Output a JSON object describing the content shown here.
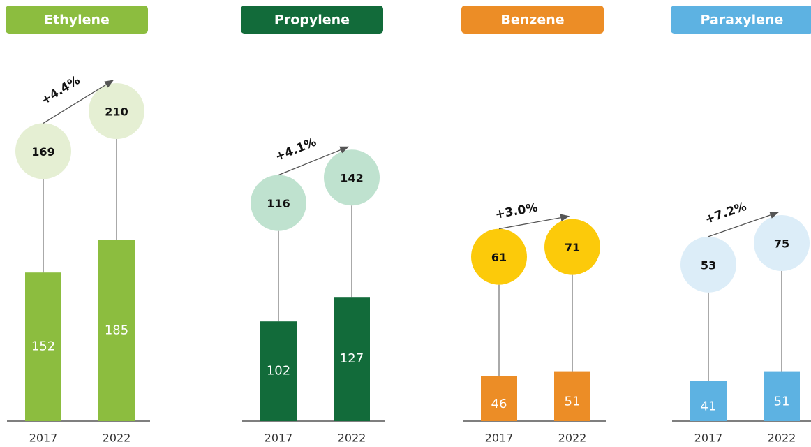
{
  "chart_data": [
    {
      "type": "bar",
      "title": "Ethylene",
      "categories": [
        "2017",
        "2022"
      ],
      "values": [
        152,
        185
      ],
      "color": "#8cbd3f",
      "circle_values": [
        169,
        210
      ],
      "circle_color": "#e5efd3",
      "annotation": "+4.4%"
    },
    {
      "type": "bar",
      "title": "Propylene",
      "categories": [
        "2017",
        "2022"
      ],
      "values": [
        102,
        127
      ],
      "color": "#126b3a",
      "circle_values": [
        116,
        142
      ],
      "circle_color": "#bfe2cf",
      "annotation": "+4.1%"
    },
    {
      "type": "bar",
      "title": "Benzene",
      "categories": [
        "2017",
        "2022"
      ],
      "values": [
        46,
        51
      ],
      "color": "#ec8d26",
      "circle_values": [
        61,
        71
      ],
      "circle_color": "#fcca0a",
      "annotation": "+3.0%"
    },
    {
      "type": "bar",
      "title": "Paraxylene",
      "categories": [
        "2017",
        "2022"
      ],
      "values": [
        41,
        51
      ],
      "color": "#5db2e2",
      "circle_values": [
        53,
        75
      ],
      "circle_color": "#dcedf8",
      "annotation": "+7.2%"
    }
  ]
}
